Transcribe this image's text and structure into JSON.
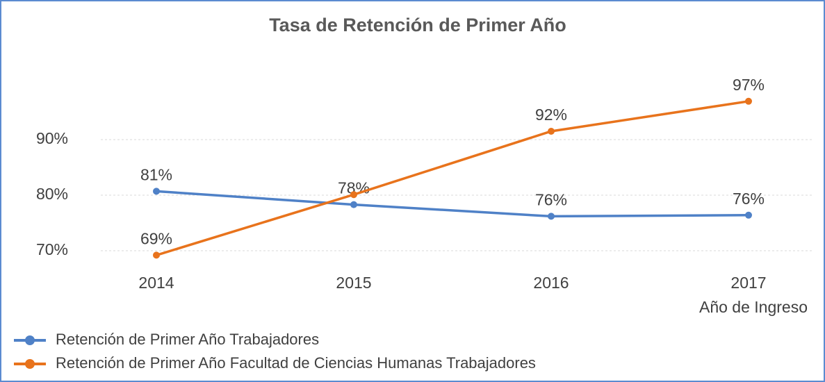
{
  "chart_data": {
    "type": "line",
    "title": "Tasa de Retención de Primer Año",
    "x_label": "Año de Ingreso",
    "categories": [
      "2014",
      "2015",
      "2016",
      "2017"
    ],
    "series": [
      {
        "name": "Retención de Primer Año Trabajadores",
        "color": "#4f81c7",
        "values": [
          80.7,
          78.3,
          76.2,
          76.4
        ],
        "value_labels": [
          "81%",
          "78%",
          "76%",
          "76%"
        ]
      },
      {
        "name": "Retención de Primer Año Facultad de Ciencias Humanas Trabajadores",
        "color": "#e8731c",
        "values": [
          69.2,
          80.1,
          91.5,
          96.9
        ],
        "value_labels": [
          "69%",
          null,
          "92%",
          "97%"
        ]
      }
    ],
    "ylim": [
      66,
      102
    ],
    "yticks": [
      {
        "value": 70,
        "label": "70%"
      },
      {
        "value": 80,
        "label": "80%"
      },
      {
        "value": 90,
        "label": "90%"
      }
    ],
    "grid": true,
    "legend": "bottom-left"
  }
}
